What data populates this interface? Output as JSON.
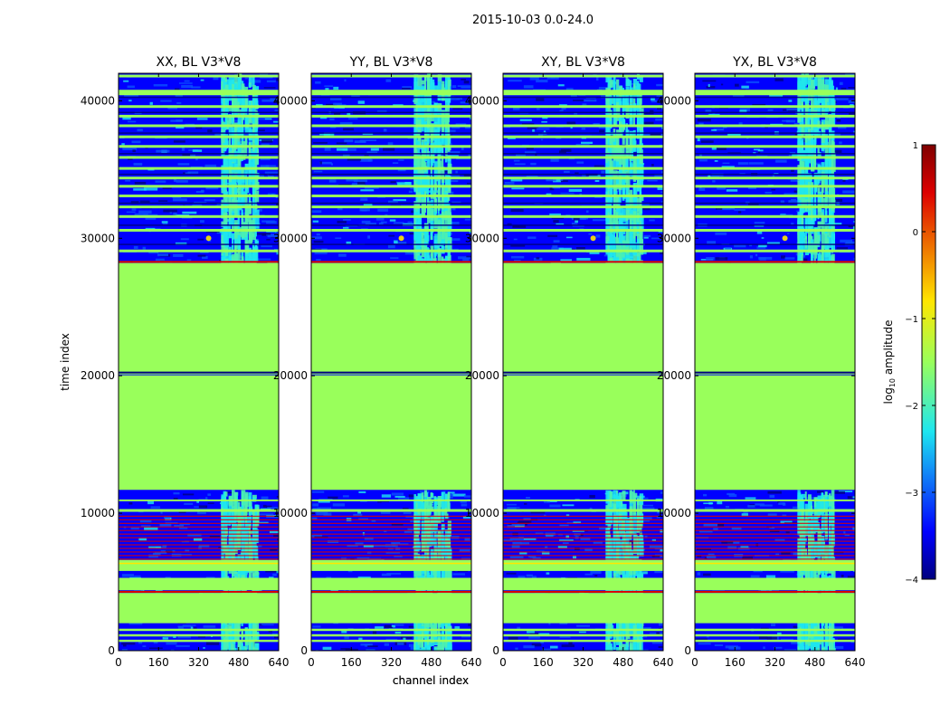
{
  "figure": {
    "suptitle": "2015-10-03 0.0-24.0"
  },
  "colors": {
    "low": "#00007f",
    "blue": "#0000ff",
    "mid_blue": "#0a50ff",
    "cyan": "#1ee6f0",
    "teal": "#4cf0b0",
    "green": "#99ff5b",
    "yellow": "#ffe600",
    "red": "#dd0000",
    "maroon": "#7f0000"
  },
  "chart_data": [
    {
      "type": "heatmap",
      "title": "XX, BL V3*V8",
      "xlabel": "channel index",
      "ylabel": "time index",
      "x_ticks": [
        0,
        160,
        320,
        480,
        640
      ],
      "y_ticks": [
        0,
        10000,
        20000,
        30000,
        40000
      ],
      "xlim": [
        0,
        640
      ],
      "ylim": [
        0,
        42000
      ]
    },
    {
      "type": "heatmap",
      "title": "YY, BL V3*V8",
      "xlabel": "channel index",
      "ylabel": "",
      "x_ticks": [
        0,
        160,
        320,
        480,
        640
      ],
      "y_ticks": [
        0,
        10000,
        20000,
        30000,
        40000
      ],
      "xlim": [
        0,
        640
      ],
      "ylim": [
        0,
        42000
      ]
    },
    {
      "type": "heatmap",
      "title": "XY, BL V3*V8",
      "xlabel": "",
      "ylabel": "",
      "x_ticks": [
        0,
        160,
        320,
        480,
        640
      ],
      "y_ticks": [
        0,
        10000,
        20000,
        30000,
        40000
      ],
      "xlim": [
        0,
        640
      ],
      "ylim": [
        0,
        42000
      ]
    },
    {
      "type": "heatmap",
      "title": "YX, BL V3*V8",
      "xlabel": "",
      "ylabel": "",
      "x_ticks": [
        0,
        160,
        320,
        480,
        640
      ],
      "y_ticks": [
        0,
        10000,
        20000,
        30000,
        40000
      ],
      "xlim": [
        0,
        640
      ],
      "ylim": [
        0,
        42000
      ]
    }
  ],
  "colorbar": {
    "label_prefix": "log",
    "label_sub": "10",
    "label_suffix": " amplitude",
    "range": [
      -4,
      1
    ],
    "ticks": [
      "1",
      "0",
      "−1",
      "−2",
      "−3",
      "−4"
    ]
  }
}
